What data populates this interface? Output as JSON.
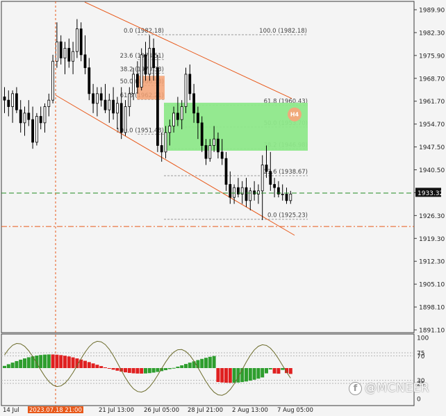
{
  "price_axis": {
    "labels": [
      "1989.90",
      "1982.30",
      "1975.90",
      "1968.70",
      "1961.70",
      "1954.70",
      "1947.50",
      "1940.50",
      "1933.32",
      "1926.30",
      "1919.30",
      "1912.30",
      "1905.10",
      "1898.10",
      "1891.10"
    ],
    "ymax": 1989.9,
    "ymin": 1891.1,
    "current_price": "1933.32"
  },
  "time_axis": {
    "labels": [
      "14 Jul",
      "2023.07.18 21:00",
      "21 Jul 13:00",
      "26 Jul 05:00",
      "28 Jul 21:00",
      "2 Aug 13:00",
      "7 Aug 05:00"
    ],
    "highlighted_label": "2023.07.18 21:00"
  },
  "fib_a": {
    "labels": [
      "0.0 (1982.18)",
      "23.6 (1974.51)",
      "38.2 (1970.33)",
      "50.0 (1966.53)",
      "61.8 (1962.21)",
      "100.0 (1951.48)"
    ],
    "right_label": "100.0 (1982.18)"
  },
  "fib_b": {
    "labels": [
      "61.8 (1960.43)",
      "50.0 (1953.70)",
      "38.2 (1946.98)",
      "23.6 (1938.67)",
      "0.0 (1925.23)"
    ]
  },
  "badge": {
    "text": "H4"
  },
  "oscillator": {
    "scale_labels": [
      "100",
      "75",
      "70",
      "30",
      "25",
      "0"
    ],
    "osc_color_up": "#2e9e2e",
    "osc_color_down": "#e02020",
    "line_color": "#6b6b2a"
  },
  "watermark": {
    "text": "@MCNEER",
    "icon": "facebook-icon"
  },
  "colors": {
    "bull": "#ffffff",
    "bear": "#000000",
    "channel": "#e8591a",
    "green_zone": "#8ee88a",
    "fib_line": "#9a9a9a",
    "current_line": "#1f8a1f",
    "support_line": "#e8591a",
    "salmon_box": "#f4a274"
  },
  "chart_data": {
    "type": "candlestick",
    "title": "",
    "timeframe": "H4",
    "y_range": [
      1891.1,
      1989.9
    ],
    "candles_ohlc": [
      [
        1963,
        1966,
        1958,
        1962
      ],
      [
        1962,
        1965,
        1957,
        1960
      ],
      [
        1960,
        1965,
        1955,
        1964
      ],
      [
        1964,
        1966,
        1958,
        1959
      ],
      [
        1959,
        1962,
        1952,
        1955
      ],
      [
        1955,
        1960,
        1951,
        1958
      ],
      [
        1958,
        1962,
        1954,
        1956
      ],
      [
        1956,
        1960,
        1947,
        1949
      ],
      [
        1949,
        1958,
        1948,
        1957
      ],
      [
        1957,
        1960,
        1953,
        1955
      ],
      [
        1955,
        1961,
        1952,
        1960
      ],
      [
        1960,
        1964,
        1957,
        1962
      ],
      [
        1962,
        1976,
        1961,
        1974
      ],
      [
        1974,
        1986,
        1972,
        1980
      ],
      [
        1980,
        1982,
        1973,
        1975
      ],
      [
        1975,
        1980,
        1970,
        1978
      ],
      [
        1978,
        1981,
        1972,
        1974
      ],
      [
        1974,
        1980,
        1970,
        1977
      ],
      [
        1977,
        1987,
        1975,
        1984
      ],
      [
        1984,
        1986,
        1974,
        1976
      ],
      [
        1976,
        1982,
        1970,
        1972
      ],
      [
        1972,
        1975,
        1962,
        1964
      ],
      [
        1964,
        1967,
        1958,
        1961
      ],
      [
        1961,
        1966,
        1957,
        1964
      ],
      [
        1964,
        1966,
        1960,
        1962
      ],
      [
        1962,
        1967,
        1958,
        1959
      ],
      [
        1959,
        1964,
        1955,
        1962
      ],
      [
        1962,
        1966,
        1956,
        1958
      ],
      [
        1958,
        1963,
        1953,
        1961
      ],
      [
        1961,
        1966,
        1950,
        1952
      ],
      [
        1952,
        1962,
        1951,
        1960
      ],
      [
        1960,
        1966,
        1957,
        1964
      ],
      [
        1964,
        1972,
        1962,
        1970
      ],
      [
        1970,
        1974,
        1964,
        1966
      ],
      [
        1966,
        1978,
        1965,
        1976
      ],
      [
        1976,
        1980,
        1968,
        1970
      ],
      [
        1970,
        1982,
        1968,
        1978
      ],
      [
        1978,
        1981,
        1968,
        1972
      ],
      [
        1972,
        1976,
        1946,
        1948
      ],
      [
        1948,
        1952,
        1943,
        1946
      ],
      [
        1946,
        1954,
        1944,
        1952
      ],
      [
        1952,
        1956,
        1948,
        1954
      ],
      [
        1954,
        1960,
        1952,
        1958
      ],
      [
        1958,
        1963,
        1954,
        1956
      ],
      [
        1956,
        1962,
        1953,
        1960
      ],
      [
        1960,
        1972,
        1958,
        1970
      ],
      [
        1970,
        1973,
        1962,
        1964
      ],
      [
        1964,
        1967,
        1955,
        1958
      ],
      [
        1958,
        1960,
        1950,
        1955
      ],
      [
        1955,
        1957,
        1946,
        1948
      ],
      [
        1948,
        1950,
        1942,
        1944
      ],
      [
        1944,
        1950,
        1943,
        1948
      ],
      [
        1948,
        1954,
        1946,
        1950
      ],
      [
        1950,
        1952,
        1944,
        1946
      ],
      [
        1946,
        1950,
        1942,
        1944
      ],
      [
        1944,
        1946,
        1934,
        1936
      ],
      [
        1936,
        1940,
        1930,
        1932
      ],
      [
        1932,
        1936,
        1930,
        1935
      ],
      [
        1935,
        1938,
        1932,
        1933
      ],
      [
        1933,
        1937,
        1930,
        1935
      ],
      [
        1935,
        1938,
        1929,
        1931
      ],
      [
        1931,
        1935,
        1928,
        1934
      ],
      [
        1934,
        1937,
        1931,
        1933
      ],
      [
        1933,
        1936,
        1930,
        1934
      ],
      [
        1934,
        1945,
        1925,
        1942
      ],
      [
        1942,
        1948,
        1938,
        1940
      ],
      [
        1940,
        1946,
        1934,
        1936
      ],
      [
        1936,
        1938,
        1932,
        1935
      ],
      [
        1935,
        1937,
        1932,
        1933
      ],
      [
        1933,
        1936,
        1931,
        1933
      ],
      [
        1933,
        1935,
        1930,
        1931
      ],
      [
        1931,
        1934,
        1930,
        1933
      ]
    ]
  }
}
